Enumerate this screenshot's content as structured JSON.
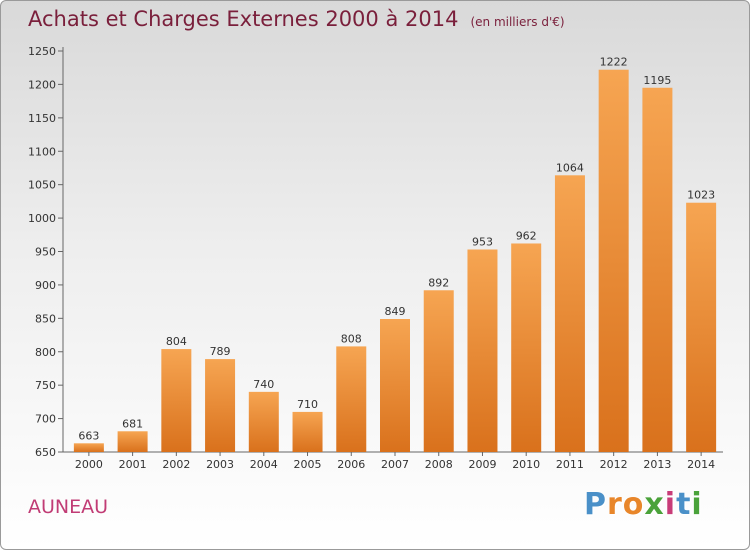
{
  "chart_data": {
    "type": "bar",
    "title": "Achats et Charges Externes 2000 à 2014",
    "subtitle": "(en milliers d'€)",
    "categories": [
      "2000",
      "2001",
      "2002",
      "2003",
      "2004",
      "2005",
      "2006",
      "2007",
      "2008",
      "2009",
      "2010",
      "2011",
      "2012",
      "2013",
      "2014"
    ],
    "values": [
      663,
      681,
      804,
      789,
      740,
      710,
      808,
      849,
      892,
      953,
      962,
      1064,
      1222,
      1195,
      1023
    ],
    "ylim": [
      650,
      1250
    ],
    "yticks": [
      650,
      700,
      750,
      800,
      850,
      900,
      950,
      1000,
      1050,
      1100,
      1150,
      1200,
      1250
    ],
    "grid": false,
    "bar_color": "#e8822a"
  },
  "footer": {
    "town": "AUNEAU",
    "logo_letters": [
      "P",
      "r",
      "o",
      "x",
      "i",
      "t",
      "i"
    ],
    "logo_colors": [
      "#4a90c8",
      "#e8862a",
      "#e8862a",
      "#4aa23a",
      "#c83c78",
      "#4a90c8",
      "#4aa23a"
    ]
  }
}
